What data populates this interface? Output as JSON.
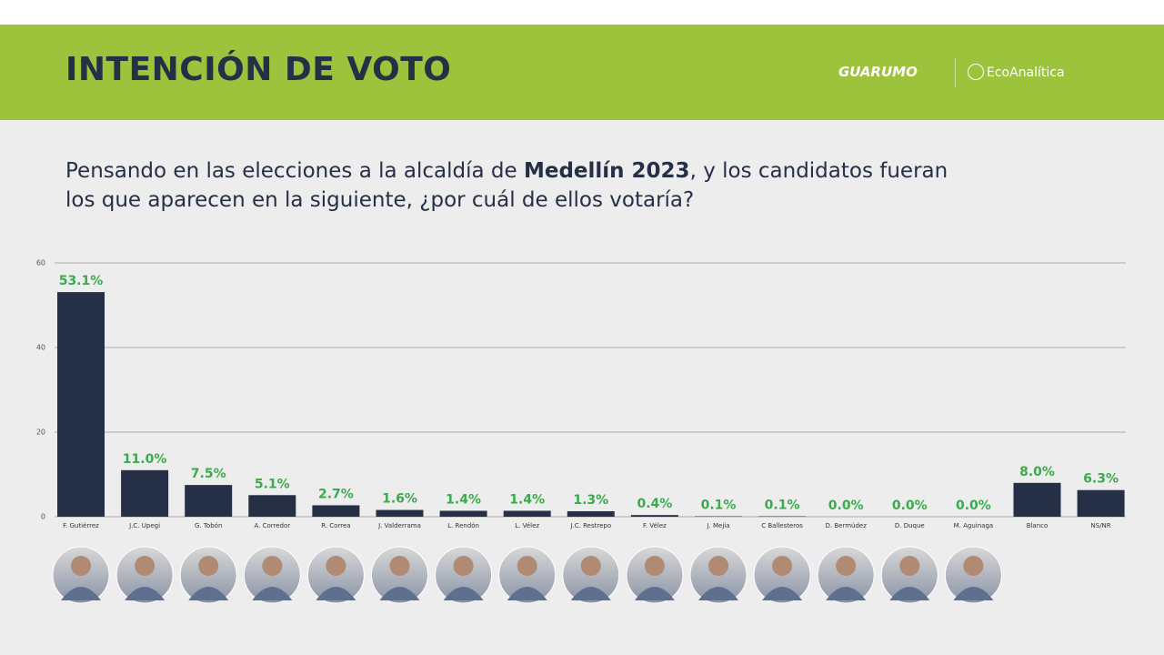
{
  "header": {
    "title": "INTENCIÓN DE VOTO",
    "logos": [
      "GUARUMO",
      "EcoAnalítica"
    ]
  },
  "question": [
    "Pensando en las elecciones a la alcaldía de ",
    "Medellín 2023",
    ", y los candidatos fueran",
    "los que aparecen en la siguiente, ¿por cuál de ellos votaría?"
  ],
  "chart_data": {
    "type": "bar",
    "categories": [
      "F. Gutiérrez",
      "J.C. Upegi",
      "G. Tobón",
      "A. Corredor",
      "R. Correa",
      "J. Valderrama",
      "L. Rendón",
      "L. Vélez",
      "J.C. Restrepo",
      "F. Vélez",
      "J. Mejía",
      "C Ballesteros",
      "D. Bermúdez",
      "D. Duque",
      "M. Aguinaga",
      "Blanco",
      "NS/NR"
    ],
    "values": [
      53.1,
      11.0,
      7.5,
      5.1,
      2.7,
      1.6,
      1.4,
      1.4,
      1.3,
      0.4,
      0.1,
      0.1,
      0.0,
      0.0,
      0.0,
      8.0,
      6.3
    ],
    "value_labels": [
      "53.1%",
      "11.0%",
      "7.5%",
      "5.1%",
      "2.7%",
      "1.6%",
      "1.4%",
      "1.4%",
      "1.3%",
      "0.4%",
      "0.1%",
      "0.1%",
      "0.0%",
      "0.0%",
      "0.0%",
      "8.0%",
      "6.3%"
    ],
    "color": "#253047",
    "label_color": "#3aaa4c",
    "ylim": [
      0,
      60
    ],
    "yticks": [
      0,
      20,
      40,
      60
    ],
    "grid": true
  }
}
